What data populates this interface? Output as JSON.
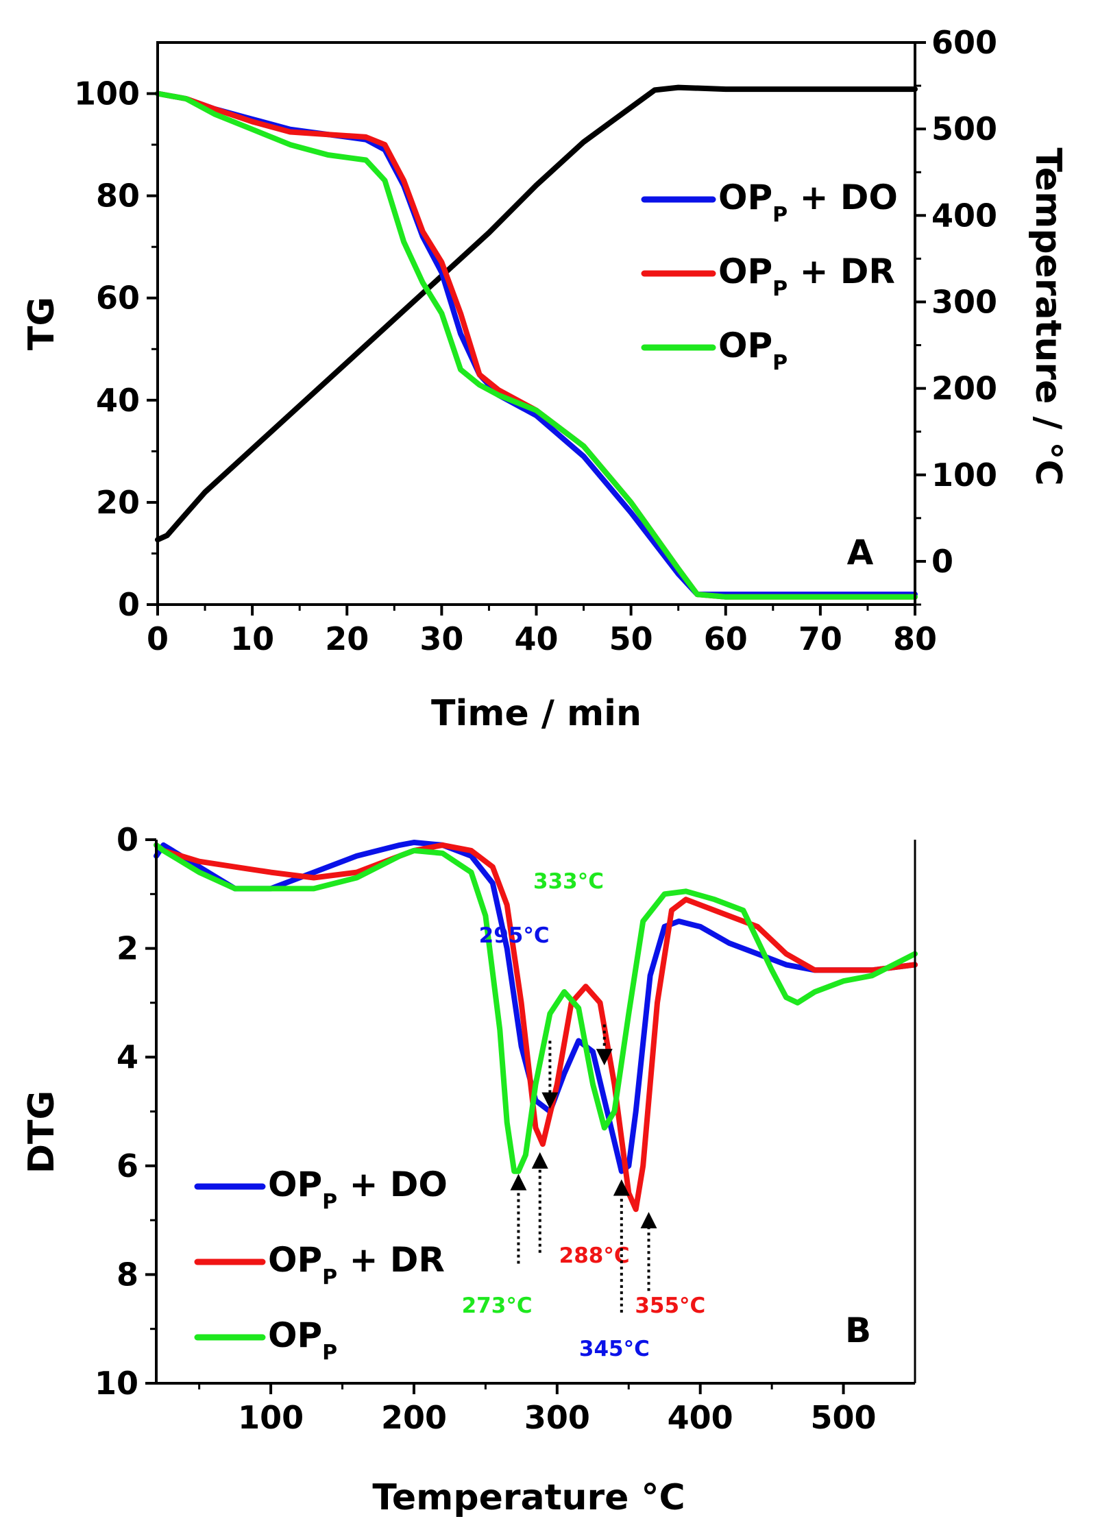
{
  "chart_data": [
    {
      "type": "line",
      "panel_label": "A",
      "xlabel": "Time / min",
      "ylabel": "TG",
      "y2label": "Temperature / °C",
      "xlim": [
        0,
        80
      ],
      "ylim": [
        0,
        110
      ],
      "y2lim": [
        -50,
        600
      ],
      "xticks": [
        "0",
        "10",
        "20",
        "30",
        "40",
        "50",
        "60",
        "70",
        "80"
      ],
      "yticks": [
        "0",
        "20",
        "40",
        "60",
        "80",
        "100"
      ],
      "y2ticks": [
        "0",
        "100",
        "200",
        "300",
        "400",
        "500",
        "600"
      ],
      "legend": {
        "position": "right",
        "entries": [
          {
            "text": "OP",
            "sub": "P",
            "suffix": " + DO",
            "color": "#0a12e8"
          },
          {
            "text": "OP",
            "sub": "P",
            "suffix": " + DR",
            "color": "#f01414"
          },
          {
            "text": "OP",
            "sub": "P",
            "suffix": "",
            "color": "#1ee81e"
          }
        ]
      },
      "series": [
        {
          "name": "OPP + DO",
          "color": "#0a12e8",
          "axis": "left",
          "x": [
            0,
            3,
            6,
            10,
            14,
            18,
            22,
            24,
            26,
            28,
            30,
            32,
            34,
            36,
            40,
            45,
            50,
            55,
            57,
            60,
            70,
            80
          ],
          "y": [
            100,
            99,
            97,
            95,
            93,
            92,
            91,
            89,
            82,
            72,
            65,
            53,
            45,
            41,
            37,
            29,
            18,
            6,
            2,
            2,
            2,
            2
          ]
        },
        {
          "name": "OPP + DR",
          "color": "#f01414",
          "axis": "left",
          "x": [
            0,
            3,
            6,
            10,
            14,
            18,
            22,
            24,
            26,
            28,
            30,
            32,
            34,
            36,
            40,
            45,
            50,
            55,
            57,
            60,
            70,
            80
          ],
          "y": [
            100,
            99,
            97,
            94.5,
            92.5,
            92,
            91.5,
            90,
            83,
            73,
            67,
            57,
            45,
            42,
            38,
            31,
            20,
            7,
            2,
            1.5,
            1.5,
            1.5
          ]
        },
        {
          "name": "OPP",
          "color": "#1ee81e",
          "axis": "left",
          "x": [
            0,
            3,
            6,
            10,
            14,
            18,
            22,
            24,
            26,
            28,
            30,
            32,
            34,
            36,
            40,
            45,
            50,
            55,
            57,
            60,
            70,
            80
          ],
          "y": [
            100,
            99,
            96,
            93,
            90,
            88,
            87,
            83,
            71,
            63,
            57,
            46,
            43,
            41,
            38,
            31,
            20,
            7,
            2,
            1.5,
            1.5,
            1.5
          ]
        },
        {
          "name": "Temperature",
          "color": "#000000",
          "axis": "right",
          "x": [
            0,
            1,
            3,
            5,
            10,
            15,
            20,
            25,
            30,
            35,
            40,
            45,
            50,
            52.5,
            55,
            60,
            65,
            70,
            80
          ],
          "y": [
            25,
            30,
            55,
            80,
            130,
            180,
            230,
            280,
            330,
            380,
            435,
            485,
            525,
            545,
            548,
            546,
            546,
            546,
            546
          ]
        }
      ]
    },
    {
      "type": "line",
      "panel_label": "B",
      "xlabel": "Temperature °C",
      "ylabel": "DTG",
      "xlim": [
        20,
        550
      ],
      "ylim": [
        0,
        10
      ],
      "y_inverted": true,
      "xticks": [
        "100",
        "200",
        "300",
        "400",
        "500"
      ],
      "yticks": [
        "0",
        "2",
        "4",
        "6",
        "8",
        "10"
      ],
      "legend": {
        "position": "bottom-left",
        "entries": [
          {
            "text": "OP",
            "sub": "P",
            "suffix": " + DO",
            "color": "#0a12e8"
          },
          {
            "text": "OP",
            "sub": "P",
            "suffix": " + DR",
            "color": "#f01414"
          },
          {
            "text": "OP",
            "sub": "P",
            "suffix": "",
            "color": "#1ee81e"
          }
        ]
      },
      "series": [
        {
          "name": "OPP + DO",
          "color": "#0a12e8",
          "x": [
            20,
            25,
            50,
            75,
            100,
            130,
            160,
            190,
            200,
            220,
            240,
            255,
            265,
            275,
            285,
            295,
            305,
            315,
            325,
            335,
            345,
            350,
            355,
            365,
            375,
            385,
            400,
            420,
            440,
            460,
            480,
            500,
            520,
            550
          ],
          "y": [
            0.3,
            0.1,
            0.5,
            0.9,
            0.9,
            0.6,
            0.3,
            0.1,
            0.05,
            0.1,
            0.3,
            0.8,
            2.0,
            3.8,
            4.8,
            5.0,
            4.3,
            3.7,
            3.9,
            5.0,
            6.1,
            6.0,
            5.0,
            2.5,
            1.6,
            1.5,
            1.6,
            1.9,
            2.1,
            2.3,
            2.4,
            2.4,
            2.4,
            2.3
          ]
        },
        {
          "name": "OPP + DR",
          "color": "#f01414",
          "x": [
            20,
            25,
            50,
            75,
            100,
            130,
            160,
            190,
            200,
            220,
            240,
            255,
            265,
            275,
            285,
            290,
            300,
            310,
            320,
            330,
            340,
            350,
            355,
            360,
            370,
            380,
            390,
            410,
            440,
            460,
            480,
            500,
            520,
            550
          ],
          "y": [
            0.1,
            0.2,
            0.4,
            0.5,
            0.6,
            0.7,
            0.6,
            0.3,
            0.2,
            0.1,
            0.2,
            0.5,
            1.2,
            3.0,
            5.3,
            5.6,
            4.5,
            3.0,
            2.7,
            3.0,
            4.5,
            6.5,
            6.8,
            6.0,
            3.0,
            1.3,
            1.1,
            1.3,
            1.6,
            2.1,
            2.4,
            2.4,
            2.4,
            2.3
          ]
        },
        {
          "name": "OPP",
          "color": "#1ee81e",
          "x": [
            20,
            25,
            50,
            75,
            100,
            130,
            160,
            190,
            200,
            220,
            240,
            250,
            260,
            265,
            270,
            273,
            278,
            285,
            295,
            305,
            315,
            325,
            333,
            340,
            350,
            360,
            375,
            390,
            410,
            430,
            450,
            460,
            468,
            480,
            500,
            520,
            550
          ],
          "y": [
            0.1,
            0.2,
            0.6,
            0.9,
            0.9,
            0.9,
            0.7,
            0.3,
            0.2,
            0.25,
            0.6,
            1.4,
            3.5,
            5.2,
            6.1,
            6.1,
            5.8,
            4.5,
            3.2,
            2.8,
            3.1,
            4.5,
            5.3,
            5.0,
            3.2,
            1.5,
            1.0,
            0.95,
            1.1,
            1.3,
            2.4,
            2.9,
            3.0,
            2.8,
            2.6,
            2.5,
            2.1
          ]
        }
      ],
      "annotations": [
        {
          "text": "333°C",
          "color": "#1ee81e",
          "x": 333,
          "y": 4.2,
          "direction": "down"
        },
        {
          "text": "295°C",
          "color": "#0a12e8",
          "x": 295,
          "y": 4.9,
          "direction": "down"
        },
        {
          "text": "273°C",
          "color": "#1ee81e",
          "x": 273,
          "y": 6.1,
          "direction": "up"
        },
        {
          "text": "288°C",
          "color": "#f01414",
          "x": 288,
          "y": 5.7,
          "direction": "up"
        },
        {
          "text": "345°C",
          "color": "#0a12e8",
          "x": 345,
          "y": 6.1,
          "direction": "up"
        },
        {
          "text": "355°C",
          "color": "#f01414",
          "x": 355,
          "y": 6.8,
          "direction": "up"
        }
      ]
    }
  ]
}
